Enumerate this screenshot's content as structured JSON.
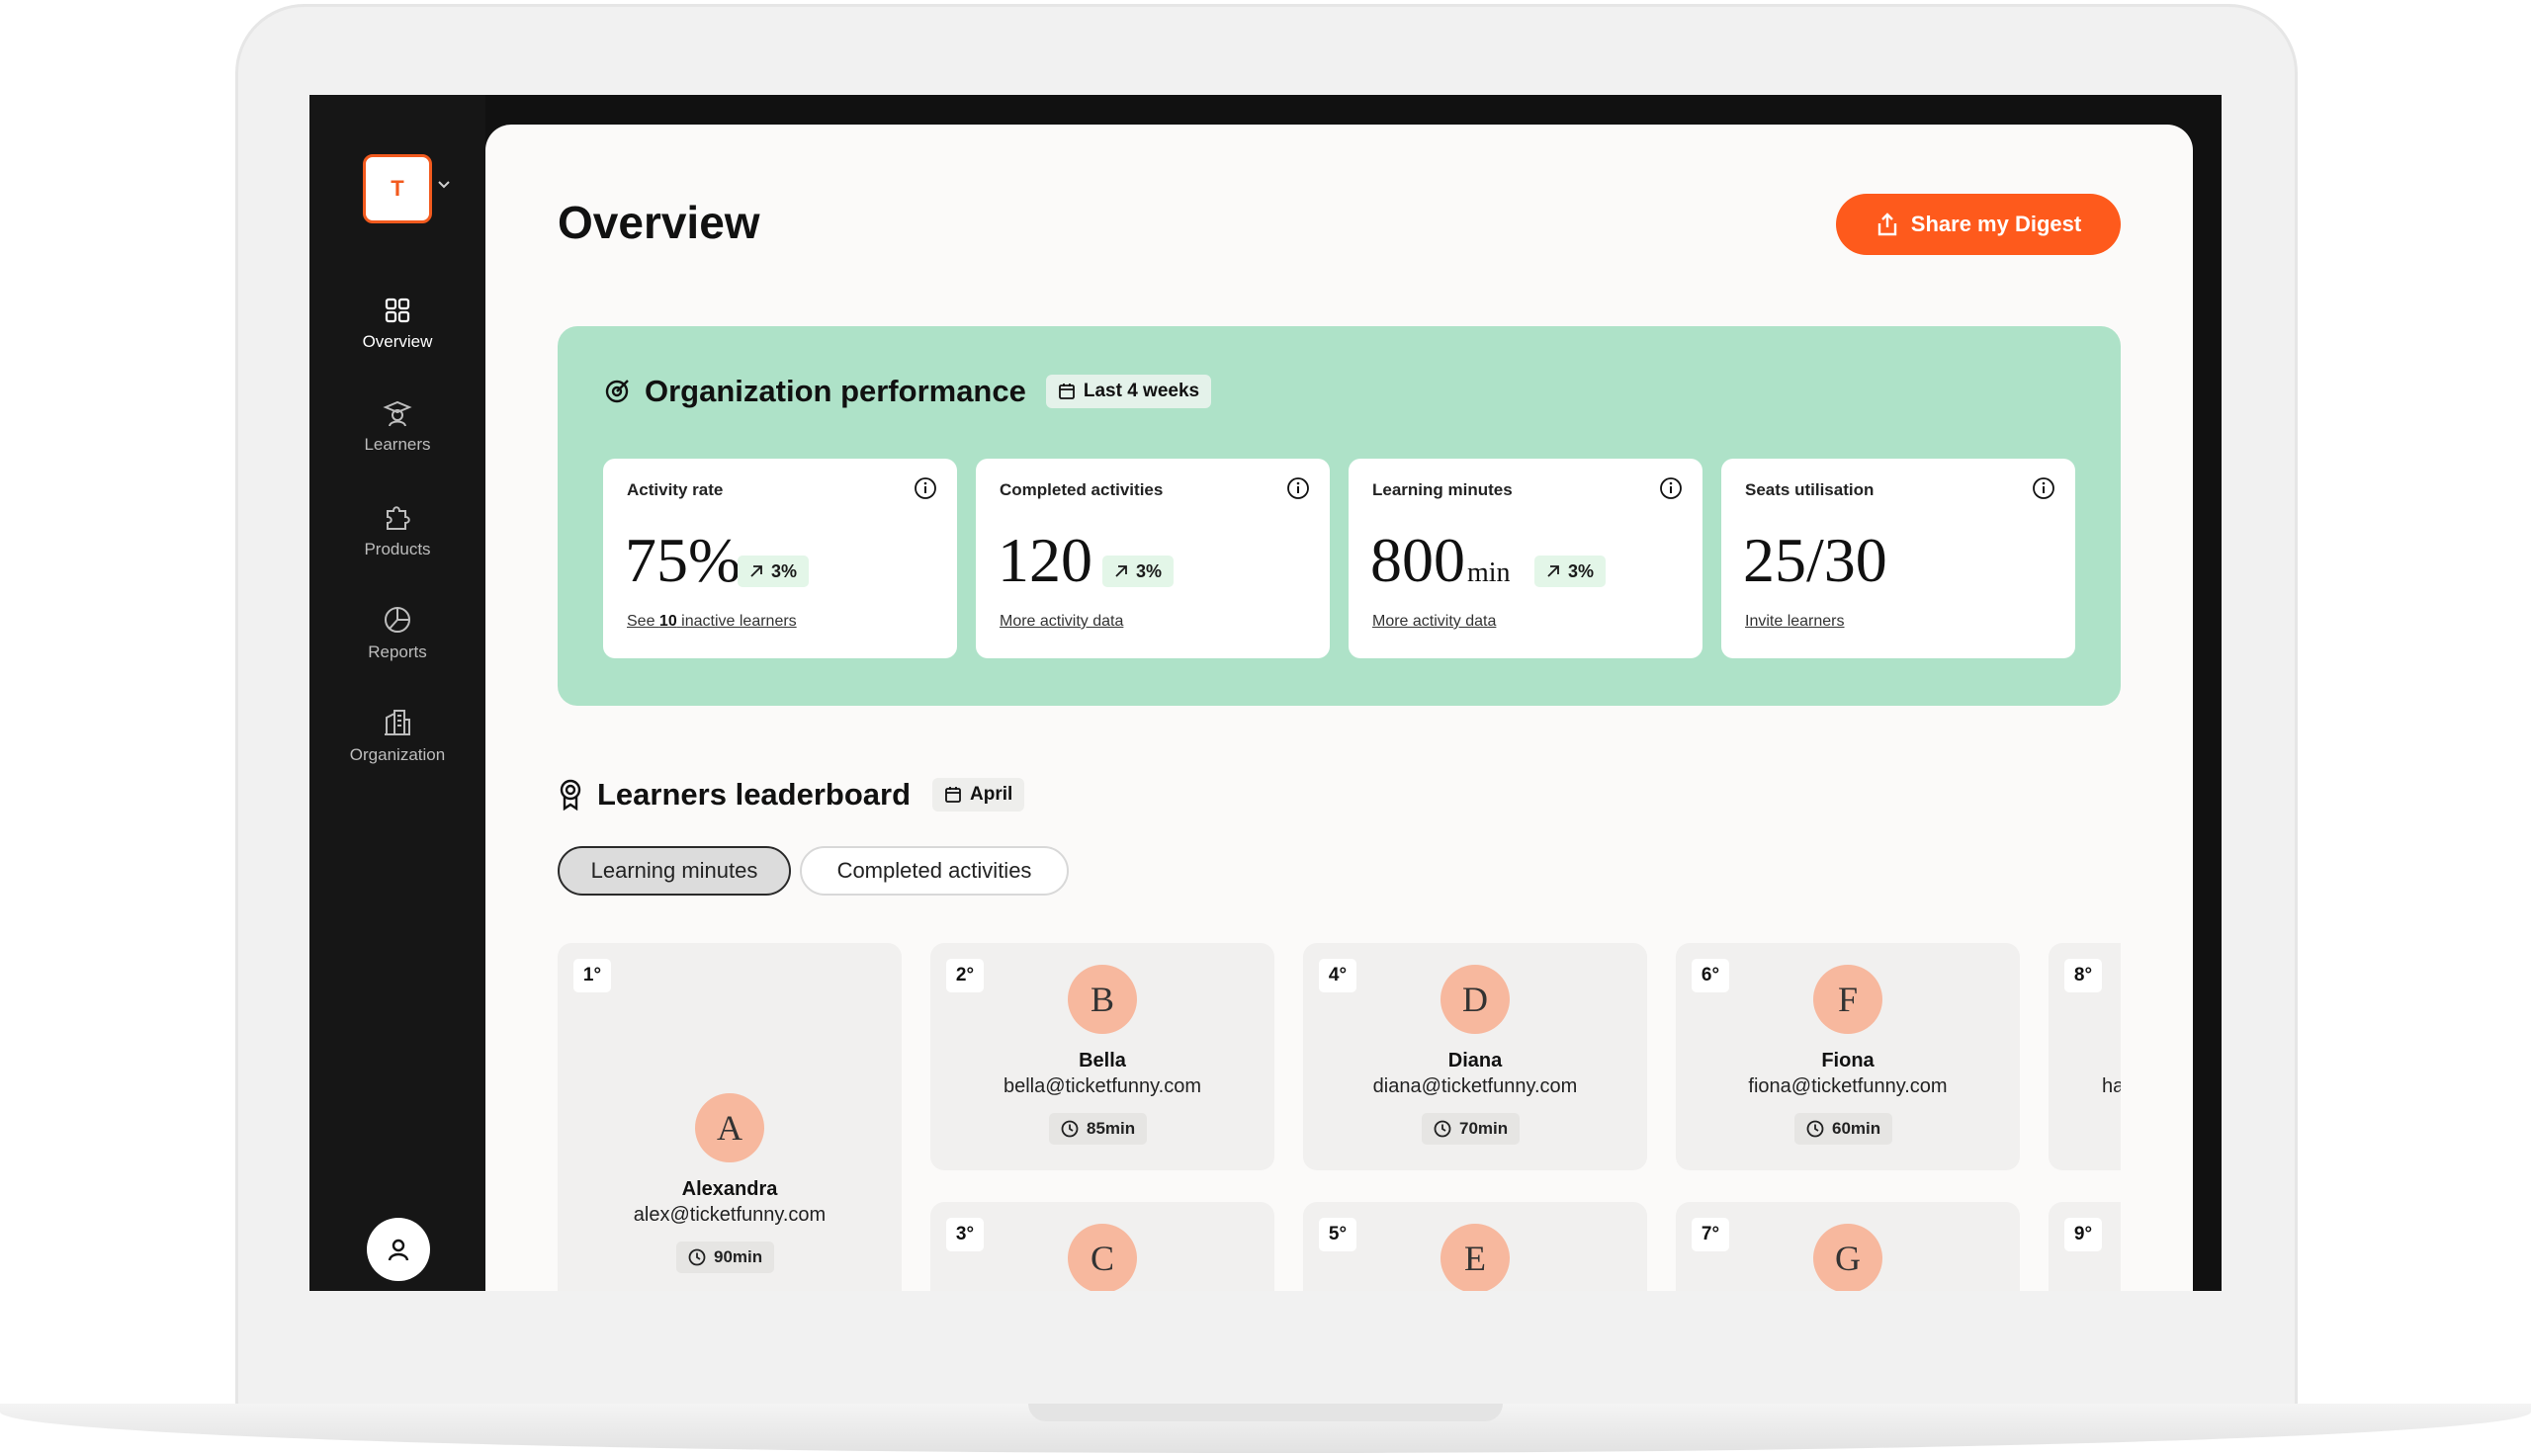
{
  "sidebar": {
    "org_initial": "T",
    "items": [
      {
        "label": "Overview",
        "icon": "grid-icon"
      },
      {
        "label": "Learners",
        "icon": "learner-icon"
      },
      {
        "label": "Products",
        "icon": "puzzle-icon"
      },
      {
        "label": "Reports",
        "icon": "pie-chart-icon"
      },
      {
        "label": "Organization",
        "icon": "building-icon"
      }
    ]
  },
  "header": {
    "title": "Overview",
    "share_label": "Share my Digest"
  },
  "performance": {
    "title": "Organization performance",
    "period": "Last 4 weeks",
    "metrics": [
      {
        "label": "Activity rate",
        "value": "75%",
        "unit": "",
        "trend": "3%",
        "link_pre": "See ",
        "link_bold": "10",
        "link_post": " inactive learners"
      },
      {
        "label": "Completed activities",
        "value": "120",
        "unit": "",
        "trend": "3%",
        "link": "More activity data"
      },
      {
        "label": "Learning minutes",
        "value": "800",
        "unit": "min",
        "trend": "3%",
        "link": "More activity data"
      },
      {
        "label": "Seats utilisation",
        "value": "25/30",
        "unit": "",
        "link": "Invite learners"
      }
    ]
  },
  "leaderboard": {
    "title": "Learners leaderboard",
    "period": "April",
    "tabs": [
      "Learning minutes",
      "Completed activities"
    ],
    "entries": [
      {
        "rank": "1°",
        "initial": "A",
        "name": "Alexandra",
        "email": "alex@ticketfunny.com",
        "minutes": "90min"
      },
      {
        "rank": "2°",
        "initial": "B",
        "name": "Bella",
        "email": "bella@ticketfunny.com",
        "minutes": "85min"
      },
      {
        "rank": "3°",
        "initial": "C"
      },
      {
        "rank": "4°",
        "initial": "D",
        "name": "Diana",
        "email": "diana@ticketfunny.com",
        "minutes": "70min"
      },
      {
        "rank": "5°",
        "initial": "E"
      },
      {
        "rank": "6°",
        "initial": "F",
        "name": "Fiona",
        "email": "fiona@ticketfunny.com",
        "minutes": "60min"
      },
      {
        "rank": "7°",
        "initial": "G"
      },
      {
        "rank": "8°",
        "email_fragment": "ha"
      },
      {
        "rank": "9°"
      }
    ]
  },
  "colors": {
    "accent": "#fe5a1c",
    "performance_bg": "#aee2c8",
    "avatar_bg": "#f7b89e",
    "sidebar_bg": "#161616"
  }
}
